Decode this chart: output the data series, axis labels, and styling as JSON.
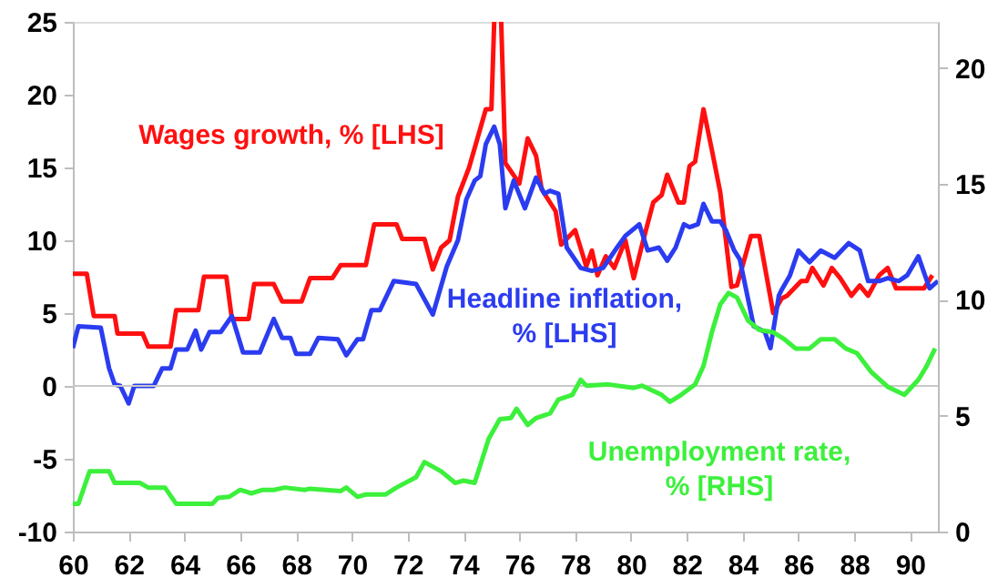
{
  "chart_data": {
    "type": "line",
    "xlim": [
      60,
      91
    ],
    "xticks": [
      60,
      62,
      64,
      66,
      68,
      70,
      72,
      74,
      76,
      78,
      80,
      82,
      84,
      86,
      88,
      90
    ],
    "ylim": [
      -10,
      25
    ],
    "yticks": [
      -10,
      -5,
      0,
      5,
      10,
      15,
      20,
      25
    ],
    "y2lim": [
      0,
      22
    ],
    "y2ticks": [
      0,
      5,
      10,
      15,
      20
    ],
    "grid": false,
    "marker": "none",
    "line_style": "solid",
    "ref_lines": [
      {
        "axis": "y",
        "value": 0,
        "color": "#c8c8c8"
      }
    ],
    "series": [
      {
        "name": "Wages growth, % [LHS]",
        "color": "#ff1010",
        "x": [
          60,
          60.5,
          60.75,
          61.5,
          61.6,
          62.5,
          62.7,
          63.5,
          63.7,
          64.5,
          64.7,
          65.5,
          65.7,
          66.3,
          66.5,
          67.2,
          67.5,
          68.2,
          68.5,
          69.3,
          69.6,
          70.5,
          70.8,
          71.6,
          71.8,
          72.6,
          72.9,
          73.2,
          73.5,
          73.8,
          74.2,
          74.5,
          74.8,
          75.0,
          75.1,
          75.2,
          75.35,
          75.5,
          76.0,
          76.3,
          76.6,
          76.8,
          77.3,
          77.5,
          78.0,
          78.4,
          78.6,
          78.8,
          79.1,
          79.4,
          79.8,
          80.1,
          80.4,
          80.8,
          81.1,
          81.3,
          81.7,
          81.9,
          82.1,
          82.3,
          82.6,
          82.9,
          83.2,
          83.6,
          83.8,
          84.3,
          84.6,
          85.1,
          85.4,
          85.6,
          86.1,
          86.3,
          86.5,
          86.9,
          87.2,
          87.5,
          87.9,
          88.2,
          88.5,
          88.9,
          89.2,
          89.5,
          90.0,
          90.5,
          90.8
        ],
        "values": [
          7.7,
          7.7,
          4.8,
          4.8,
          3.6,
          3.6,
          2.7,
          2.7,
          5.2,
          5.2,
          7.5,
          7.5,
          4.6,
          4.6,
          7.0,
          7.0,
          5.8,
          5.8,
          7.4,
          7.4,
          8.3,
          8.3,
          11.1,
          11.1,
          10.1,
          10.1,
          8.0,
          9.5,
          10.0,
          13.0,
          15.0,
          17.0,
          19.0,
          19.0,
          25,
          null,
          25,
          15.3,
          13.9,
          17.0,
          15.8,
          13.5,
          12.0,
          9.7,
          10.7,
          8.2,
          9.3,
          7.6,
          8.9,
          8.1,
          10.0,
          7.4,
          9.7,
          12.6,
          13.1,
          14.5,
          12.6,
          12.6,
          15.1,
          15.4,
          19.0,
          16.2,
          13.3,
          6.8,
          6.9,
          10.3,
          10.3,
          5.0,
          6.0,
          6.2,
          7.2,
          7.2,
          8.1,
          6.9,
          8.1,
          7.4,
          6.2,
          6.9,
          6.2,
          7.6,
          8.1,
          6.7,
          6.7,
          6.7,
          7.6
        ]
      },
      {
        "name": "Headline inflation, % [LHS]",
        "color": "#2b3cf0",
        "x": [
          60.0,
          60.2,
          61.0,
          61.3,
          61.5,
          61.7,
          62.0,
          62.2,
          62.9,
          63.2,
          63.5,
          63.7,
          64.1,
          64.4,
          64.6,
          64.9,
          65.3,
          65.7,
          66.1,
          66.7,
          67.2,
          67.5,
          67.8,
          68.0,
          68.5,
          68.8,
          69.5,
          69.8,
          70.2,
          70.4,
          70.7,
          71.0,
          71.5,
          72.3,
          72.9,
          73.4,
          73.8,
          74.1,
          74.4,
          74.6,
          74.8,
          75.1,
          75.3,
          75.5,
          75.8,
          76.2,
          76.6,
          76.9,
          77.1,
          77.4,
          77.7,
          78.2,
          78.6,
          79.0,
          79.5,
          79.8,
          80.3,
          80.6,
          81.0,
          81.3,
          81.6,
          81.9,
          82.1,
          82.4,
          82.6,
          82.9,
          83.2,
          83.4,
          83.7,
          83.9,
          84.4,
          84.8,
          85.0,
          85.3,
          85.4,
          85.7,
          86.0,
          86.4,
          86.8,
          87.3,
          87.8,
          88.2,
          88.5,
          88.9,
          89.2,
          89.6,
          89.9,
          90.3,
          90.7,
          91.0
        ],
        "values": [
          2.6,
          4.1,
          4.0,
          1.2,
          0.1,
          0,
          -1.2,
          0,
          0,
          1.2,
          1.2,
          2.5,
          2.5,
          3.8,
          2.5,
          3.7,
          3.7,
          4.8,
          2.3,
          2.3,
          4.6,
          3.3,
          3.3,
          2.2,
          2.2,
          3.3,
          3.2,
          2.1,
          3.2,
          3.2,
          5.2,
          5.2,
          7.2,
          7.0,
          4.9,
          8.2,
          10.0,
          12.8,
          14.1,
          14.4,
          16.6,
          17.8,
          16.6,
          12.2,
          14.1,
          12.2,
          14.3,
          13.2,
          13.4,
          13.2,
          9.5,
          8.1,
          7.9,
          8.1,
          9.5,
          10.3,
          11.1,
          9.3,
          9.5,
          8.6,
          9.5,
          11.1,
          10.9,
          11.1,
          12.5,
          11.3,
          11.3,
          10.7,
          9.3,
          8.7,
          4.1,
          3.7,
          2.6,
          6.2,
          6.6,
          7.6,
          9.3,
          8.5,
          9.3,
          8.8,
          9.8,
          9.3,
          7.2,
          7.2,
          7.4,
          7.2,
          7.6,
          8.9,
          6.7,
          7.2
        ]
      },
      {
        "name": "Unemployment rate, % [RHS]",
        "color": "#3cf03c",
        "axis": "y2",
        "x": [
          60.0,
          60.2,
          60.6,
          61.3,
          61.5,
          62.4,
          62.7,
          63.3,
          63.7,
          65.0,
          65.2,
          65.6,
          66.0,
          66.4,
          66.8,
          67.2,
          67.6,
          68.3,
          68.5,
          69.6,
          69.8,
          70.2,
          70.5,
          71.2,
          71.6,
          72.3,
          72.6,
          73.2,
          73.7,
          74.0,
          74.4,
          74.9,
          75.3,
          75.7,
          75.9,
          76.3,
          76.6,
          77.1,
          77.4,
          77.9,
          78.2,
          78.4,
          79.2,
          80.1,
          80.4,
          81.1,
          81.4,
          81.8,
          82.3,
          82.6,
          82.9,
          83.2,
          83.5,
          83.8,
          84.2,
          84.6,
          85.1,
          85.5,
          85.9,
          86.4,
          86.8,
          87.3,
          87.7,
          88.1,
          88.6,
          89.2,
          89.8,
          90.3,
          90.6,
          90.9
        ],
        "values": [
          1.2,
          1.2,
          2.6,
          2.6,
          2.1,
          2.1,
          1.9,
          1.9,
          1.2,
          1.2,
          1.45,
          1.5,
          1.8,
          1.65,
          1.8,
          1.8,
          1.9,
          1.8,
          1.85,
          1.75,
          1.9,
          1.5,
          1.6,
          1.6,
          1.9,
          2.35,
          3.0,
          2.6,
          2.1,
          2.2,
          2.1,
          4.0,
          4.85,
          4.9,
          5.3,
          4.6,
          4.9,
          5.1,
          5.7,
          5.9,
          6.55,
          6.3,
          6.35,
          6.2,
          6.3,
          5.9,
          5.6,
          5.9,
          6.35,
          7.15,
          8.6,
          9.8,
          10.3,
          10.1,
          9.1,
          8.7,
          8.6,
          8.3,
          7.9,
          7.9,
          8.3,
          8.3,
          7.9,
          7.7,
          6.9,
          6.25,
          5.9,
          6.55,
          7.15,
          7.9
        ]
      }
    ]
  }
}
